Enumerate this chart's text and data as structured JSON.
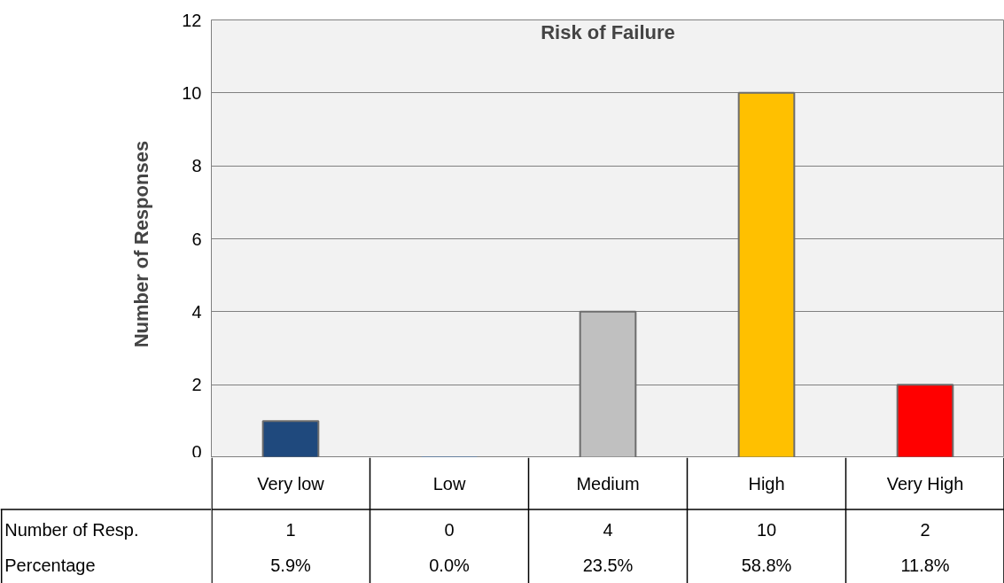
{
  "chart_data": {
    "type": "bar",
    "title": "Risk of Failure",
    "ylabel": "Number  of  Responses",
    "categories": [
      "Very low",
      "Low",
      "Medium",
      "High",
      "Very High"
    ],
    "values": [
      1,
      0,
      4,
      10,
      2
    ],
    "colors": [
      "#1f497d",
      "#4f81bd",
      "#c0c0c0",
      "#ffc000",
      "#ff0000"
    ],
    "ylim": [
      0,
      12
    ],
    "yticks": [
      0,
      2,
      4,
      6,
      8,
      10,
      12
    ],
    "grid": "y",
    "data_labels": true,
    "annotations": [
      "Number of Resp.",
      "Percentage",
      "5.9%",
      "0.0%",
      "23.5%",
      "58.8%",
      "11.8%"
    ]
  }
}
